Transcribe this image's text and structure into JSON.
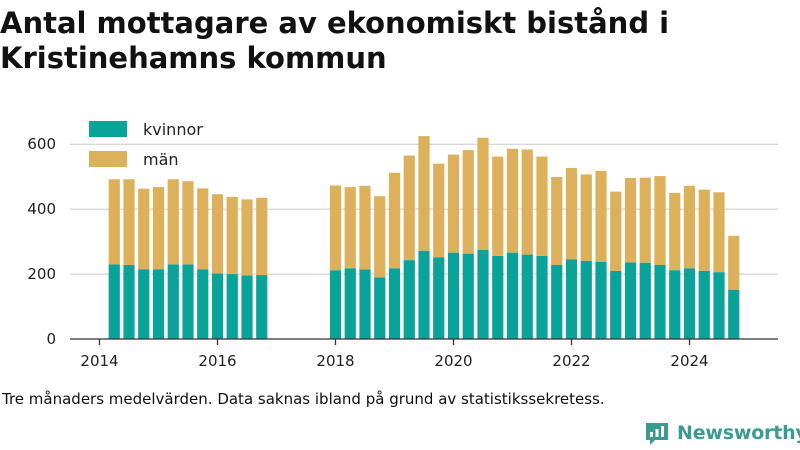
{
  "title": "Antal mottagare av ekonomiskt bistånd i Kristinehamns kommun",
  "caption": "Tre månaders medelvärden. Data saknas ibland på grund av statistikssekretess.",
  "brand": {
    "name": "Newsworthy",
    "color": "#3a9b93"
  },
  "colors": {
    "kvinnor": "#0aa39a",
    "man": "#ddb05c",
    "grid": "#cccccc",
    "axis": "#333333"
  },
  "chart_data": {
    "type": "bar",
    "stacked": true,
    "x_tick_labels": [
      "2014",
      "2016",
      "2018",
      "2020",
      "2022",
      "2024"
    ],
    "y_tick_labels": [
      "0",
      "200",
      "400",
      "600"
    ],
    "ylim": [
      0,
      650
    ],
    "xlim": [
      2013.5,
      2025.5
    ],
    "grid": true,
    "legend_position": "top-left",
    "series": [
      {
        "name": "kvinnor",
        "color": "#0aa39a",
        "points": [
          {
            "x": "2014-04",
            "value": 230
          },
          {
            "x": "2014-07",
            "value": 228
          },
          {
            "x": "2014-10",
            "value": 215
          },
          {
            "x": "2015-01",
            "value": 215
          },
          {
            "x": "2015-04",
            "value": 230
          },
          {
            "x": "2015-07",
            "value": 230
          },
          {
            "x": "2015-10",
            "value": 215
          },
          {
            "x": "2016-01",
            "value": 202
          },
          {
            "x": "2016-04",
            "value": 200
          },
          {
            "x": "2016-07",
            "value": 196
          },
          {
            "x": "2016-10",
            "value": 197
          },
          {
            "x": "2018-01",
            "value": 212
          },
          {
            "x": "2018-04",
            "value": 218
          },
          {
            "x": "2018-07",
            "value": 214
          },
          {
            "x": "2018-10",
            "value": 190
          },
          {
            "x": "2019-01",
            "value": 218
          },
          {
            "x": "2019-04",
            "value": 243
          },
          {
            "x": "2019-07",
            "value": 272
          },
          {
            "x": "2019-10",
            "value": 252
          },
          {
            "x": "2020-01",
            "value": 266
          },
          {
            "x": "2020-04",
            "value": 263
          },
          {
            "x": "2020-07",
            "value": 275
          },
          {
            "x": "2020-10",
            "value": 256
          },
          {
            "x": "2021-01",
            "value": 266
          },
          {
            "x": "2021-04",
            "value": 260
          },
          {
            "x": "2021-07",
            "value": 256
          },
          {
            "x": "2021-10",
            "value": 228
          },
          {
            "x": "2022-01",
            "value": 245
          },
          {
            "x": "2022-04",
            "value": 241
          },
          {
            "x": "2022-07",
            "value": 238
          },
          {
            "x": "2022-10",
            "value": 210
          },
          {
            "x": "2023-01",
            "value": 236
          },
          {
            "x": "2023-04",
            "value": 235
          },
          {
            "x": "2023-07",
            "value": 228
          },
          {
            "x": "2023-10",
            "value": 212
          },
          {
            "x": "2024-01",
            "value": 218
          },
          {
            "x": "2024-04",
            "value": 210
          },
          {
            "x": "2024-07",
            "value": 206
          },
          {
            "x": "2024-10",
            "value": 152
          }
        ]
      },
      {
        "name": "män",
        "color": "#ddb05c",
        "points": [
          {
            "x": "2014-04",
            "value": 262
          },
          {
            "x": "2014-07",
            "value": 264
          },
          {
            "x": "2014-10",
            "value": 248
          },
          {
            "x": "2015-01",
            "value": 253
          },
          {
            "x": "2015-04",
            "value": 262
          },
          {
            "x": "2015-07",
            "value": 256
          },
          {
            "x": "2015-10",
            "value": 249
          },
          {
            "x": "2016-01",
            "value": 244
          },
          {
            "x": "2016-04",
            "value": 238
          },
          {
            "x": "2016-07",
            "value": 234
          },
          {
            "x": "2016-10",
            "value": 238
          },
          {
            "x": "2018-01",
            "value": 261
          },
          {
            "x": "2018-04",
            "value": 250
          },
          {
            "x": "2018-07",
            "value": 258
          },
          {
            "x": "2018-10",
            "value": 250
          },
          {
            "x": "2019-01",
            "value": 294
          },
          {
            "x": "2019-04",
            "value": 322
          },
          {
            "x": "2019-07",
            "value": 353
          },
          {
            "x": "2019-10",
            "value": 288
          },
          {
            "x": "2020-01",
            "value": 302
          },
          {
            "x": "2020-04",
            "value": 319
          },
          {
            "x": "2020-07",
            "value": 345
          },
          {
            "x": "2020-10",
            "value": 306
          },
          {
            "x": "2021-01",
            "value": 320
          },
          {
            "x": "2021-04",
            "value": 324
          },
          {
            "x": "2021-07",
            "value": 306
          },
          {
            "x": "2021-10",
            "value": 271
          },
          {
            "x": "2022-01",
            "value": 282
          },
          {
            "x": "2022-04",
            "value": 266
          },
          {
            "x": "2022-07",
            "value": 280
          },
          {
            "x": "2022-10",
            "value": 244
          },
          {
            "x": "2023-01",
            "value": 260
          },
          {
            "x": "2023-04",
            "value": 262
          },
          {
            "x": "2023-07",
            "value": 274
          },
          {
            "x": "2023-10",
            "value": 238
          },
          {
            "x": "2024-01",
            "value": 254
          },
          {
            "x": "2024-04",
            "value": 250
          },
          {
            "x": "2024-07",
            "value": 246
          },
          {
            "x": "2024-10",
            "value": 166
          }
        ]
      }
    ]
  }
}
